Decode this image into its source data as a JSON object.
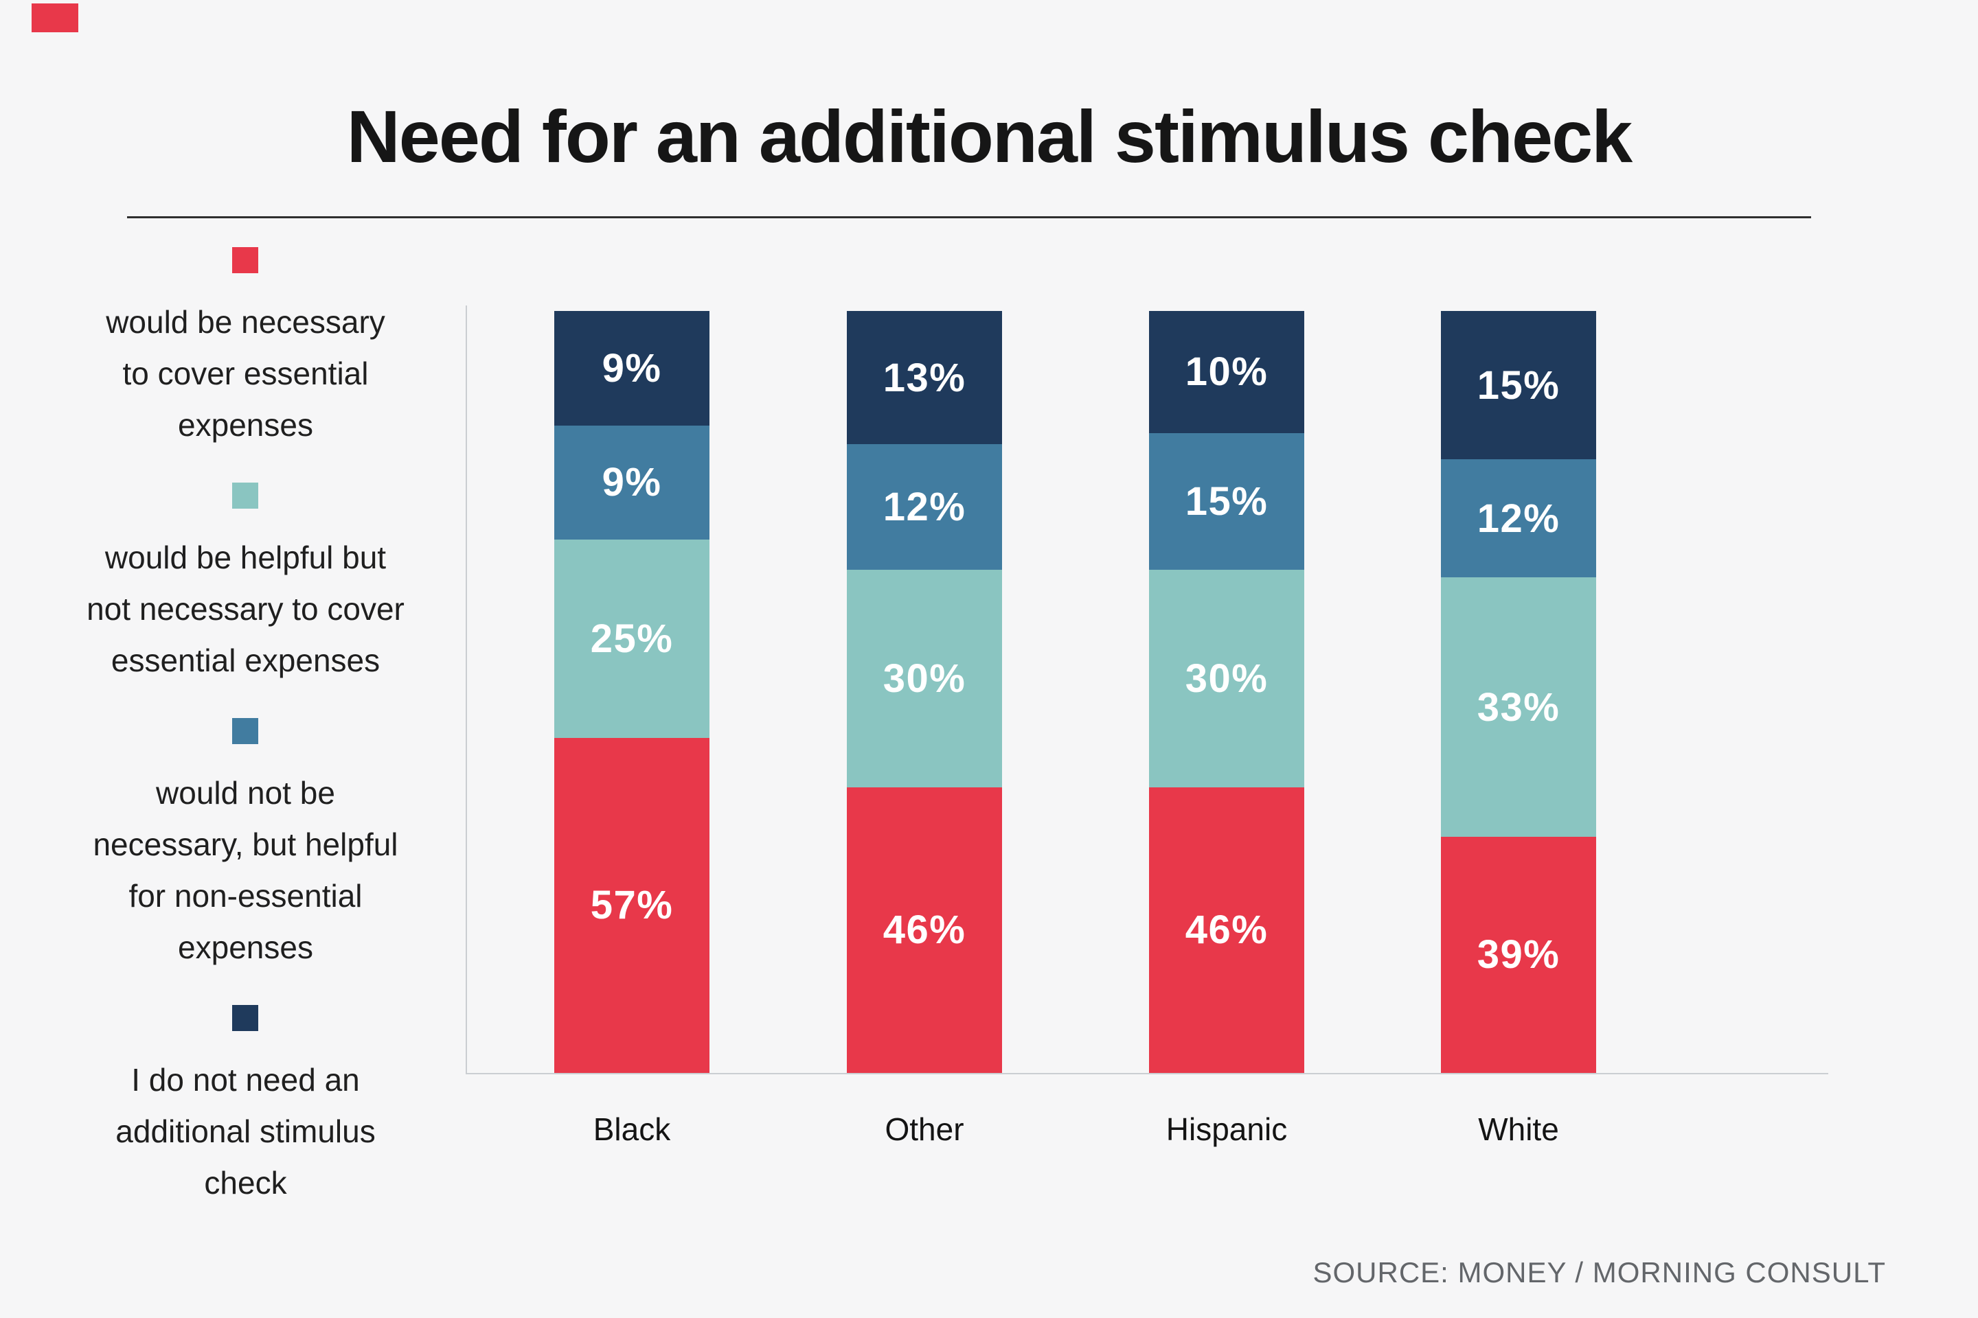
{
  "title": "Need for an additional stimulus check",
  "source": "SOURCE: MONEY / MORNING CONSULT",
  "colors": {
    "background": "#F6F6F7",
    "red": "#E8384A",
    "teal": "#8AC5C1",
    "blue": "#417CA0",
    "navy": "#1F3A5C",
    "axis": "#CBCED2",
    "ink": "#161616",
    "source_text": "#63666A",
    "value_label": "#FFFFFF"
  },
  "legend": {
    "items": [
      {
        "key": "necessary",
        "color": "#E8384A",
        "label": "would be necessary\nto cover essential\nexpenses"
      },
      {
        "key": "helpful-not-necessary",
        "color": "#8AC5C1",
        "label": "would be helpful but\nnot necessary to cover\nessential expenses"
      },
      {
        "key": "not-necessary-helpful",
        "color": "#417CA0",
        "label": "would not be\nnecessary, but helpful\nfor non-essential\nexpenses"
      },
      {
        "key": "do-not-need",
        "color": "#1F3A5C",
        "label": "I do not need an\nadditional stimulus\ncheck"
      }
    ]
  },
  "chart_data": {
    "type": "bar",
    "stacked": true,
    "stack_order": "bottom-to-top",
    "categories": [
      "Black",
      "Other",
      "Hispanic",
      "White"
    ],
    "series": [
      {
        "key": "necessary",
        "name": "would be necessary to cover essential expenses",
        "color": "#E8384A",
        "values": [
          57,
          46,
          46,
          39
        ]
      },
      {
        "key": "helpful-not-necessary",
        "name": "would be helpful but not necessary to cover essential expenses",
        "color": "#8AC5C1",
        "values": [
          25,
          30,
          30,
          33
        ]
      },
      {
        "key": "not-necessary-helpful",
        "name": "would not be necessary, but helpful for non-essential expenses",
        "color": "#417CA0",
        "values": [
          9,
          12,
          15,
          12
        ]
      },
      {
        "key": "do-not-need",
        "name": "I do not need an additional stimulus check",
        "color": "#1F3A5C",
        "values": [
          9,
          13,
          10,
          15
        ]
      }
    ],
    "value_suffix": "%",
    "title": "Need for an additional stimulus check",
    "xlabel": "",
    "ylabel": "",
    "ylim": [
      0,
      100
    ],
    "grid": false,
    "legend_position": "left",
    "layout_display_heights_pct_top_to_bottom": {
      "Black": [
        15.0,
        15.0,
        26.0,
        44.0
      ],
      "Other": [
        17.5,
        16.5,
        28.5,
        37.5
      ],
      "Hispanic": [
        16.0,
        18.0,
        28.5,
        37.5
      ],
      "White": [
        19.5,
        15.5,
        34.0,
        31.0
      ]
    }
  }
}
